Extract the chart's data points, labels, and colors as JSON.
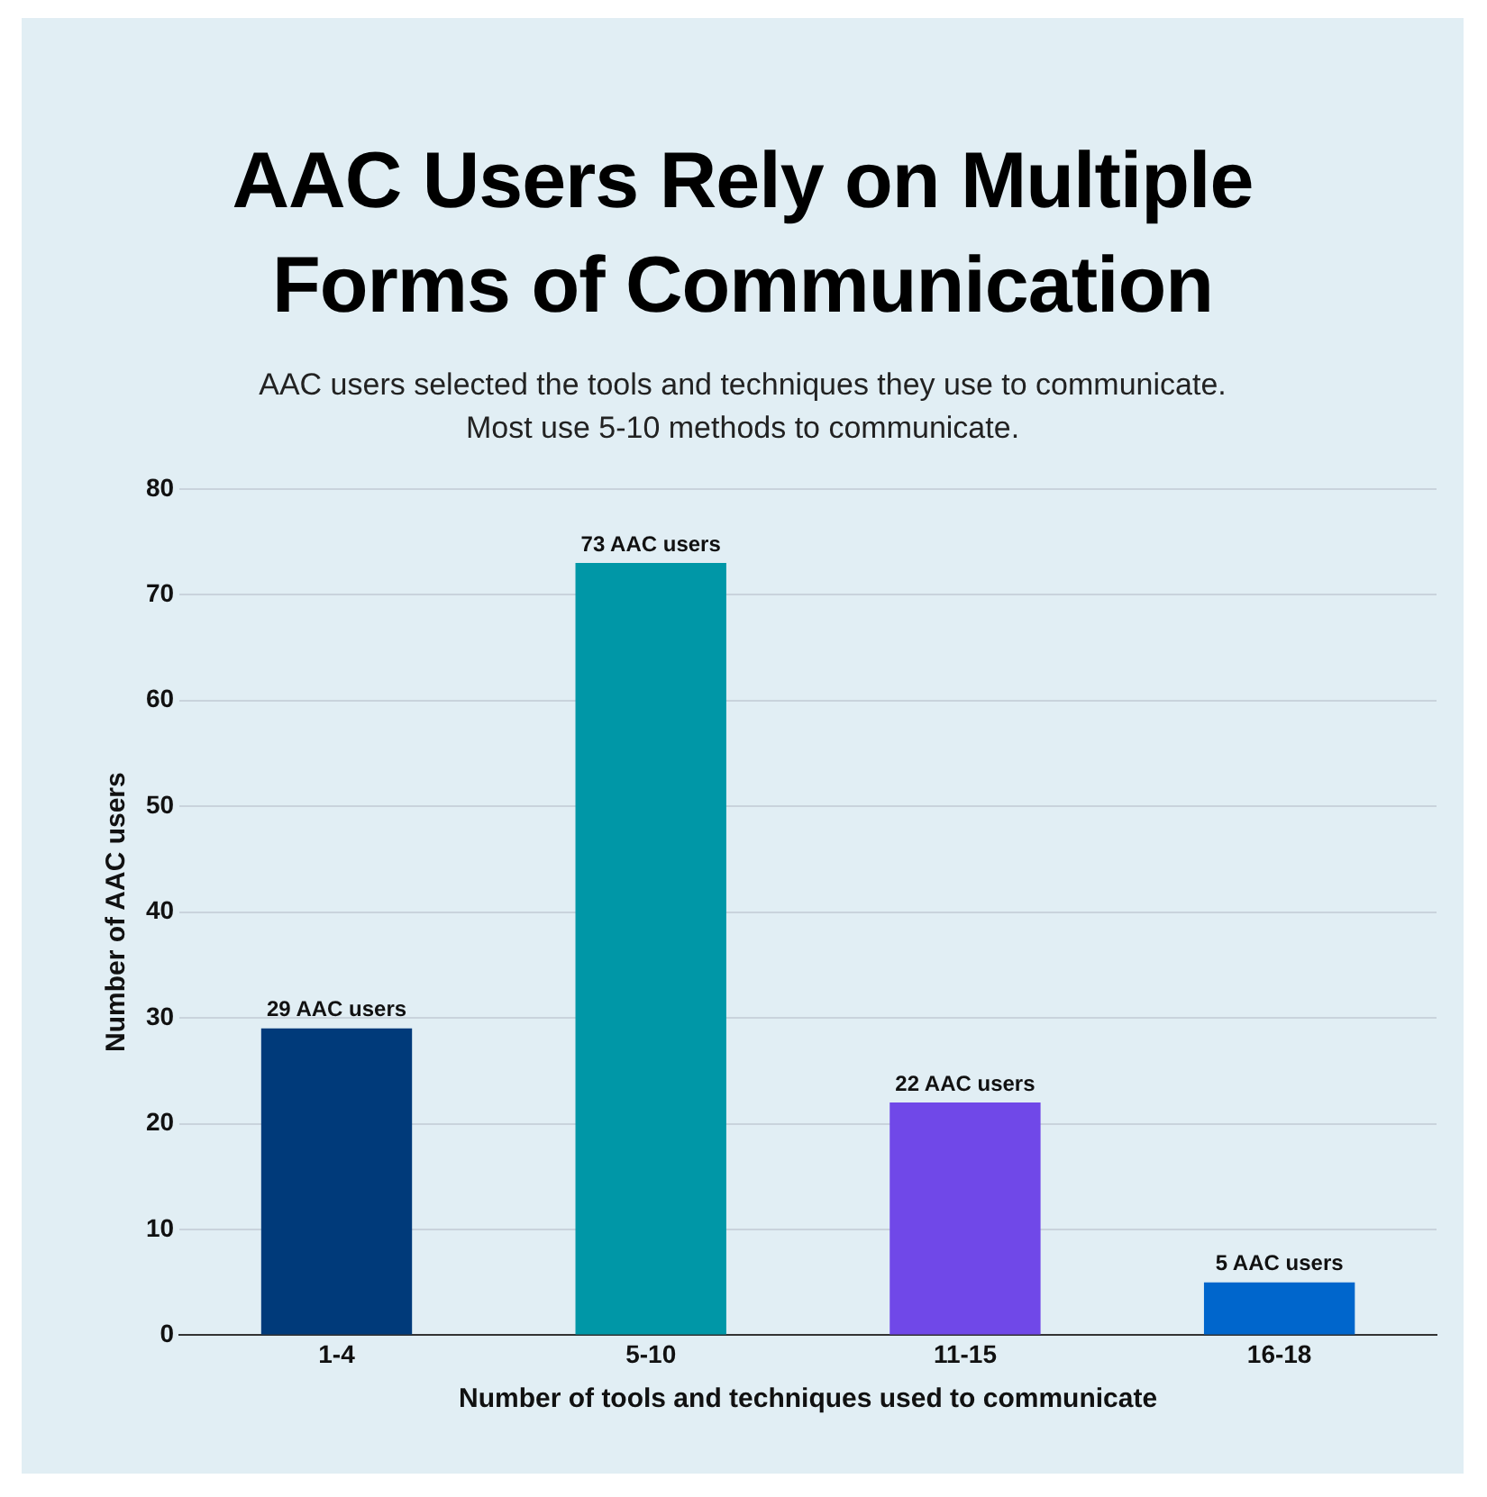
{
  "chart_data": {
    "type": "bar",
    "title": "AAC Users Rely on Multiple Forms of Communication",
    "subtitle": "AAC users selected the tools and techniques they use to communicate.\nMost use 5-10 methods to communicate.",
    "xlabel": "Number of tools and techniques used to communicate",
    "ylabel": "Number of AAC users",
    "categories": [
      "1-4",
      "5-10",
      "11-15",
      "16-18"
    ],
    "values": [
      29,
      73,
      22,
      5
    ],
    "colors": [
      "#003a7a",
      "#0097a7",
      "#7048e8",
      "#0066cc"
    ],
    "value_labels": [
      "29 AAC users",
      "73 AAC users",
      "22 AAC users",
      "5 AAC users"
    ],
    "ylim": [
      0,
      80
    ],
    "yticks": [
      0,
      10,
      20,
      30,
      40,
      50,
      60,
      70,
      80
    ],
    "grid": "y",
    "legend": false
  }
}
